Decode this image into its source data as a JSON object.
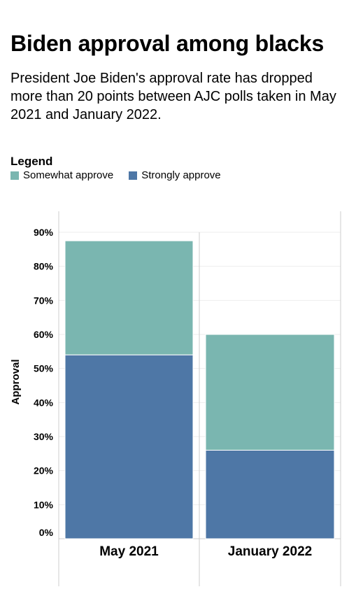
{
  "header": {
    "title": "Biden approval among blacks",
    "subtitle": "President Joe Biden's approval rate has dropped more than 20 points between AJC polls taken in May 2021 and January 2022."
  },
  "legend": {
    "title": "Legend",
    "items": [
      {
        "label": "Somewhat approve",
        "color": "#7ab6b0"
      },
      {
        "label": "Strongly approve",
        "color": "#4e77a6"
      }
    ]
  },
  "chart_data": {
    "type": "bar",
    "stacked": true,
    "categories": [
      "May 2021",
      "January 2022"
    ],
    "series": [
      {
        "name": "Strongly approve",
        "color": "#4e77a6",
        "values": [
          54,
          26
        ]
      },
      {
        "name": "Somewhat approve",
        "color": "#7ab6b0",
        "values": [
          33.5,
          34
        ]
      }
    ],
    "ylabel": "Approval",
    "ylim": [
      0,
      90
    ],
    "yticks": [
      0,
      10,
      20,
      30,
      40,
      50,
      60,
      70,
      80,
      90
    ],
    "ytick_labels": [
      "0%",
      "10%",
      "20%",
      "30%",
      "40%",
      "50%",
      "60%",
      "70%",
      "80%",
      "90%"
    ],
    "grid": true
  }
}
